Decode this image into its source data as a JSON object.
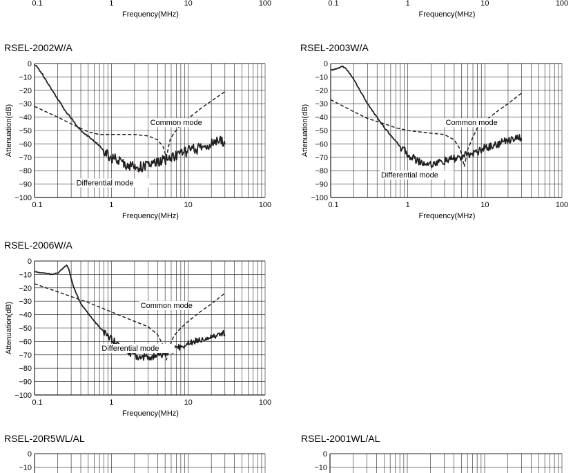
{
  "chart_data": [
    {
      "type": "line",
      "title": "",
      "xlabel": "Frequency(MHz)",
      "ylabel": "",
      "xscale": "log",
      "xlim": [
        0.1,
        100
      ],
      "x_ticks": [
        "0.1",
        "1",
        "10",
        "100"
      ],
      "partial": "bottom-only",
      "series": []
    },
    {
      "type": "line",
      "title": "",
      "xlabel": "Frequency(MHz)",
      "ylabel": "",
      "xscale": "log",
      "xlim": [
        0.1,
        100
      ],
      "x_ticks": [
        "0.1",
        "1",
        "10",
        "100"
      ],
      "partial": "bottom-only",
      "series": []
    },
    {
      "type": "line",
      "title": "RSEL-2002W/A",
      "xlabel": "Frequency(MHz)",
      "ylabel": "Attenuation(dB)",
      "xscale": "log",
      "xlim": [
        0.1,
        100
      ],
      "ylim": [
        -100,
        0
      ],
      "x_ticks": [
        "0.1",
        "1",
        "10",
        "100"
      ],
      "y_ticks": [
        "0",
        "−10",
        "−20",
        "−30",
        "−40",
        "−50",
        "−60",
        "−70",
        "−80",
        "−90",
        "−100"
      ],
      "annotations": [
        {
          "text": "Common mode",
          "x": 3.2,
          "y": -46
        },
        {
          "text": "Differential mode",
          "x": 0.35,
          "y": -91
        }
      ],
      "series": [
        {
          "name": "Differential mode",
          "style": "solid",
          "noise": 4,
          "x": [
            0.1,
            0.11,
            0.13,
            0.17,
            0.25,
            0.4,
            0.6,
            1.0,
            1.5,
            2.0,
            2.5,
            3.0,
            4.0,
            5.0,
            6.0,
            8.0,
            10,
            15,
            20,
            25,
            30
          ],
          "y": [
            -1,
            -3,
            -9,
            -20,
            -35,
            -50,
            -58,
            -70,
            -75,
            -77,
            -77,
            -76,
            -74,
            -72,
            -70,
            -67,
            -65,
            -63,
            -60,
            -58,
            -58
          ]
        },
        {
          "name": "Common mode",
          "style": "dashed",
          "x": [
            0.1,
            0.2,
            0.3,
            0.5,
            0.7,
            1.0,
            2.0,
            3.0,
            4.0,
            4.7,
            5.2,
            5.8,
            6.5,
            8.0,
            10,
            15,
            20,
            30
          ],
          "y": [
            -32,
            -40,
            -45,
            -51,
            -53,
            -53,
            -53,
            -54,
            -57,
            -62,
            -70,
            -57,
            -52,
            -46,
            -41,
            -33,
            -28,
            -21
          ]
        }
      ]
    },
    {
      "type": "line",
      "title": "RSEL-2003W/A",
      "xlabel": "Frequency(MHz)",
      "ylabel": "Attenuation(dB)",
      "xscale": "log",
      "xlim": [
        0.1,
        100
      ],
      "ylim": [
        -100,
        0
      ],
      "x_ticks": [
        "0.1",
        "1",
        "10",
        "100"
      ],
      "y_ticks": [
        "0",
        "−10",
        "−20",
        "−30",
        "−40",
        "−50",
        "−60",
        "−70",
        "−80",
        "−90",
        "−100"
      ],
      "annotations": [
        {
          "text": "Common mode",
          "x": 3.1,
          "y": -46
        },
        {
          "text": "Differential mode",
          "x": 0.45,
          "y": -85
        }
      ],
      "series": [
        {
          "name": "Differential mode",
          "style": "solid",
          "noise": 3,
          "x": [
            0.1,
            0.12,
            0.14,
            0.16,
            0.2,
            0.3,
            0.5,
            0.8,
            1.0,
            1.5,
            2.0,
            3.0,
            4.0,
            5.0,
            6.0,
            8.0,
            10,
            15,
            20,
            25,
            30
          ],
          "y": [
            -5,
            -4,
            -2,
            -4,
            -12,
            -30,
            -48,
            -62,
            -68,
            -74,
            -75,
            -73,
            -71,
            -70,
            -68,
            -66,
            -63,
            -60,
            -57,
            -55,
            -56
          ]
        },
        {
          "name": "Common mode",
          "style": "dashed",
          "x": [
            0.1,
            0.2,
            0.3,
            0.5,
            0.7,
            1.0,
            2.0,
            3.0,
            4.0,
            4.8,
            5.4,
            6.0,
            7.0,
            8.0,
            10,
            15,
            20,
            30
          ],
          "y": [
            -27,
            -36,
            -41,
            -45,
            -48,
            -50,
            -52,
            -53,
            -57,
            -64,
            -77,
            -64,
            -55,
            -48,
            -43,
            -35,
            -30,
            -22
          ]
        }
      ]
    },
    {
      "type": "line",
      "title": "RSEL-2006W/A",
      "xlabel": "Frequency(MHz)",
      "ylabel": "Attenuation(dB)",
      "xscale": "log",
      "xlim": [
        0.1,
        100
      ],
      "ylim": [
        -100,
        0
      ],
      "x_ticks": [
        "0.1",
        "1",
        "10",
        "100"
      ],
      "y_ticks": [
        "0",
        "−10",
        "−20",
        "−30",
        "−40",
        "−50",
        "−60",
        "−70",
        "−80",
        "−90",
        "−100"
      ],
      "annotations": [
        {
          "text": "Common mode",
          "x": 2.4,
          "y": -35
        },
        {
          "text": "Differential mode",
          "x": 0.75,
          "y": -67
        }
      ],
      "series": [
        {
          "name": "Differential mode",
          "style": "solid",
          "noise": 2.5,
          "x": [
            0.1,
            0.13,
            0.17,
            0.2,
            0.23,
            0.26,
            0.28,
            0.32,
            0.4,
            0.6,
            0.8,
            1.0,
            1.5,
            2.0,
            3.0,
            4.0,
            5.0,
            6.0,
            8.0,
            10,
            15,
            20,
            30
          ],
          "y": [
            -8,
            -9,
            -10,
            -9,
            -6,
            -3,
            -6,
            -19,
            -32,
            -45,
            -53,
            -58,
            -66,
            -71,
            -72,
            -71,
            -69,
            -67,
            -64,
            -61,
            -58,
            -56,
            -54
          ]
        },
        {
          "name": "Common mode",
          "style": "dashed",
          "x": [
            0.1,
            0.2,
            0.5,
            1.0,
            2.0,
            3.0,
            4.0,
            4.7,
            5.2,
            5.8,
            6.5,
            8.0,
            10,
            15,
            20,
            30
          ],
          "y": [
            -17,
            -23,
            -31,
            -38,
            -45,
            -49,
            -55,
            -63,
            -74,
            -63,
            -56,
            -50,
            -45,
            -37,
            -32,
            -24
          ]
        }
      ]
    },
    {
      "type": "line",
      "title": "RSEL-20R5WL/AL",
      "xlabel": "",
      "ylabel": "",
      "xscale": "log",
      "xlim": [
        0.1,
        100
      ],
      "ylim": [
        -100,
        0
      ],
      "y_ticks": [
        "0",
        "−10"
      ],
      "partial": "top-only",
      "series": []
    },
    {
      "type": "line",
      "title": "RSEL-2001WL/AL",
      "xlabel": "",
      "ylabel": "",
      "xscale": "log",
      "xlim": [
        0.1,
        100
      ],
      "ylim": [
        -100,
        0
      ],
      "y_ticks": [
        "0",
        "−10"
      ],
      "partial": "top-only",
      "series": []
    }
  ]
}
